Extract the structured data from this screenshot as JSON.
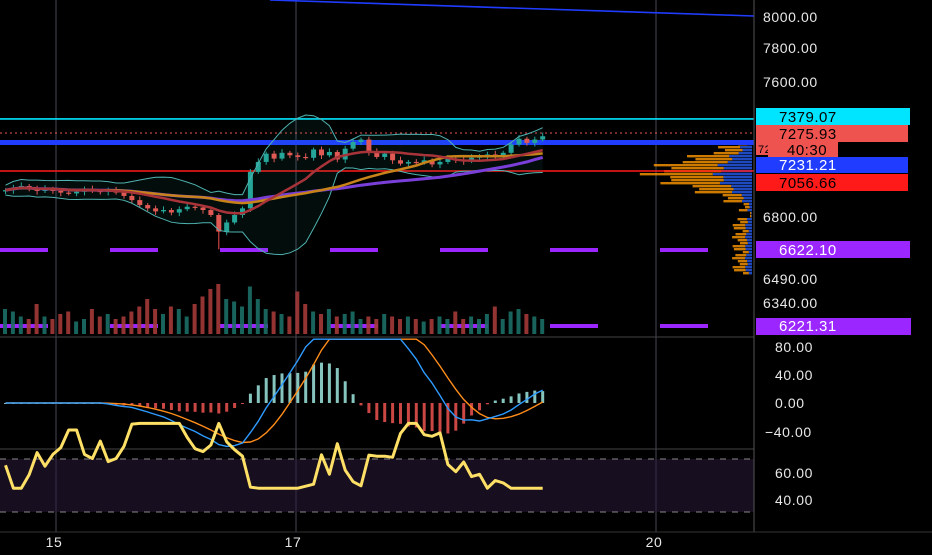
{
  "colors": {
    "background": "#000000",
    "grid": "#3c3c4a",
    "bull": "#26a69a",
    "bear": "#ef5350",
    "cyan_line": "#00e5ff",
    "blue_line": "#1f3cff",
    "red_line": "#ff1a1a",
    "purple_dash": "#9b26ff",
    "rsi_line": "#ffe066",
    "macd_line": "#2e9bff",
    "signal_line": "#ff8c1a",
    "vp_orange": "#ff9800",
    "vp_blue": "#2962ff"
  },
  "price_axis": {
    "ticks": [
      "8000.00",
      "7800.00",
      "7600.00",
      "6800.00",
      "6490.00",
      "6340.00"
    ]
  },
  "price_tags": [
    {
      "name": "cyan-level-tag",
      "text": "7379.07",
      "bg": "#00e5ff",
      "fg": "#000000"
    },
    {
      "name": "last-price-tag",
      "text": "7275.93",
      "bg": "#ef5350",
      "fg": "#000000"
    },
    {
      "name": "countdown-tag",
      "text": "40:30",
      "bg": "#ef5350",
      "fg": "#000000"
    },
    {
      "name": "partial-tag",
      "text": "72",
      "bg": "#ef5350",
      "fg": "#000000"
    },
    {
      "name": "blue-level-tag",
      "text": "7231.21",
      "bg": "#1f3cff",
      "fg": "#ffffff"
    },
    {
      "name": "red-level-tag",
      "text": "7056.66",
      "bg": "#ff1a1a",
      "fg": "#000000"
    },
    {
      "name": "purple-level-tag-upper",
      "text": "6622.10",
      "bg": "#9b26ff",
      "fg": "#ffffff"
    },
    {
      "name": "purple-level-tag-lower",
      "text": "6221.31",
      "bg": "#9b26ff",
      "fg": "#ffffff"
    }
  ],
  "macd_axis": {
    "ticks": [
      "80.00",
      "40.00",
      "0.00",
      "−40.00"
    ]
  },
  "rsi_axis": {
    "ticks": [
      "60.00",
      "40.00"
    ]
  },
  "time_axis": {
    "labels": [
      "15",
      "17",
      "20"
    ]
  },
  "chart_data": {
    "type": "candlestick",
    "ylim": [
      6180,
      8040
    ],
    "close": [
      6950,
      6965,
      6975,
      6960,
      6945,
      6958,
      6945,
      6935,
      6930,
      6940,
      6955,
      6945,
      6940,
      6948,
      6935,
      6915,
      6890,
      6860,
      6840,
      6822,
      6830,
      6815,
      6835,
      6850,
      6845,
      6830,
      6800,
      6700,
      6755,
      6800,
      6840,
      7060,
      7120,
      7170,
      7140,
      7175,
      7160,
      7150,
      7145,
      7195,
      7160,
      7180,
      7135,
      7200,
      7240,
      7255,
      7180,
      7150,
      7170,
      7130,
      7110,
      7120,
      7115,
      7130,
      7105,
      7120,
      7140,
      7130,
      7125,
      7145,
      7155,
      7165,
      7150,
      7175,
      7225,
      7260,
      7235,
      7255,
      7275
    ],
    "volume": [
      0.5,
      0.45,
      0.35,
      0.3,
      0.6,
      0.35,
      0.3,
      0.4,
      0.45,
      0.25,
      0.3,
      0.5,
      0.35,
      0.4,
      0.3,
      0.35,
      0.45,
      0.55,
      0.7,
      0.5,
      0.4,
      0.55,
      0.5,
      0.35,
      0.6,
      0.75,
      0.9,
      1.0,
      0.7,
      0.65,
      0.55,
      0.95,
      0.7,
      0.5,
      0.45,
      0.4,
      0.35,
      0.85,
      0.6,
      0.45,
      0.4,
      0.5,
      0.35,
      0.4,
      0.45,
      0.3,
      0.35,
      0.3,
      0.4,
      0.35,
      0.3,
      0.35,
      0.3,
      0.25,
      0.3,
      0.35,
      0.3,
      0.45,
      0.3,
      0.35,
      0.3,
      0.4,
      0.55,
      0.3,
      0.45,
      0.5,
      0.4,
      0.35,
      0.3
    ],
    "levels": {
      "cyan": 7379.07,
      "blue": 7231.21,
      "red": 7056.66,
      "purple_upper": 6622.1,
      "purple_lower": 6221.31
    },
    "macd_ylim": [
      -72,
      90
    ],
    "rsi_ylim": [
      20,
      80
    ]
  }
}
